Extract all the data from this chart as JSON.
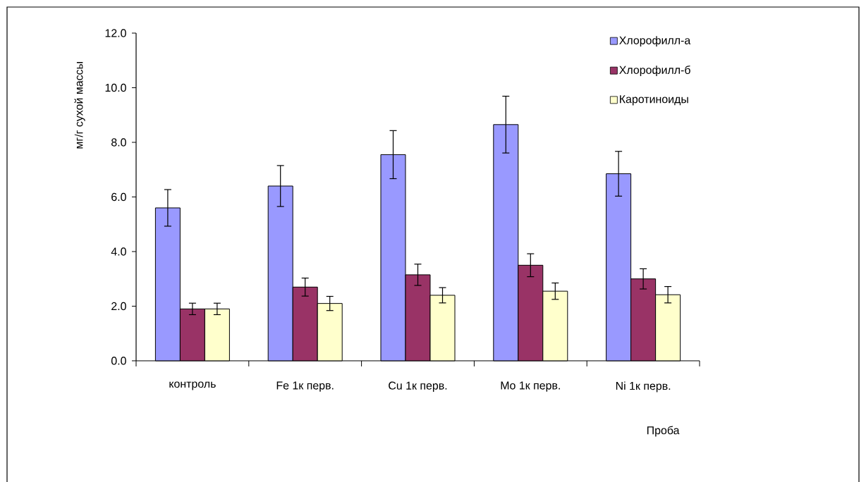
{
  "chart_data": {
    "type": "bar",
    "categories": [
      "контроль",
      "Fe 1к перв.",
      "Cu 1к перв.",
      "Mo 1к перв.",
      "Ni 1к перв."
    ],
    "series": [
      {
        "name": "Хлорофилл-а",
        "color": "#9999ff",
        "values": [
          5.6,
          6.4,
          7.55,
          8.65,
          6.85
        ],
        "errors": [
          0.67,
          0.75,
          0.88,
          1.04,
          0.82
        ]
      },
      {
        "name": "Хлорофилл-б",
        "color": "#993366",
        "values": [
          1.9,
          2.7,
          3.15,
          3.5,
          3.0
        ],
        "errors": [
          0.21,
          0.33,
          0.39,
          0.42,
          0.37
        ]
      },
      {
        "name": "Каротиноиды",
        "color": "#ffffcc",
        "values": [
          1.9,
          2.1,
          2.4,
          2.55,
          2.42
        ],
        "errors": [
          0.21,
          0.26,
          0.28,
          0.3,
          0.3
        ]
      }
    ],
    "xlabel": "Проба",
    "ylabel": "мг/г сухой массы",
    "ylim": [
      0,
      12
    ],
    "yticks": [
      {
        "value": 0,
        "label": "0.0"
      },
      {
        "value": 2,
        "label": "2.0"
      },
      {
        "value": 4,
        "label": "4.0"
      },
      {
        "value": 6,
        "label": "6.0"
      },
      {
        "value": 8,
        "label": "8.0"
      },
      {
        "value": 10,
        "label": "10.0"
      },
      {
        "value": 12,
        "label": "12.0"
      }
    ],
    "grid": false,
    "legend": "top right"
  }
}
